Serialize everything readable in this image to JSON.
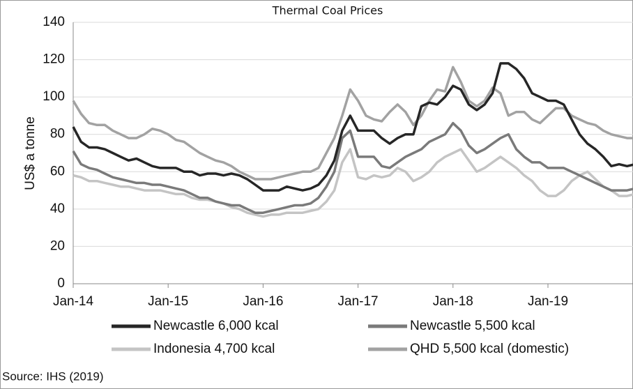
{
  "chart_data": {
    "type": "line",
    "title": "Thermal Coal Prices",
    "y_label": "US$ a tonne",
    "source": "Source: IHS (2019)",
    "categories": [
      "Jan-14",
      null,
      null,
      null,
      null,
      null,
      null,
      null,
      null,
      null,
      null,
      null,
      "Jan-15",
      null,
      null,
      null,
      null,
      null,
      null,
      null,
      null,
      null,
      null,
      null,
      "Jan-16",
      null,
      null,
      null,
      null,
      null,
      null,
      null,
      null,
      null,
      null,
      null,
      "Jan-17",
      null,
      null,
      null,
      null,
      null,
      null,
      null,
      null,
      null,
      null,
      null,
      "Jan-18",
      null,
      null,
      null,
      null,
      null,
      null,
      null,
      null,
      null,
      null,
      null,
      "Jan-19",
      null,
      null,
      null,
      null,
      null,
      null,
      null,
      null,
      null,
      null,
      null
    ],
    "ylim": [
      0,
      140
    ],
    "yticks": [
      0,
      20,
      40,
      60,
      80,
      100,
      120,
      140
    ],
    "grid": true,
    "series": [
      {
        "name": "Newcastle 6,000 kcal",
        "color": "#262626",
        "values": [
          84,
          76,
          73,
          73,
          72,
          70,
          68,
          66,
          67,
          65,
          63,
          62,
          62,
          62,
          60,
          60,
          58,
          59,
          59,
          58,
          59,
          58,
          56,
          53,
          50,
          50,
          50,
          52,
          51,
          50,
          51,
          53,
          58,
          66,
          82,
          90,
          82,
          82,
          82,
          78,
          75,
          78,
          80,
          80,
          95,
          97,
          96,
          100,
          106,
          104,
          96,
          93,
          96,
          102,
          118,
          118,
          115,
          110,
          102,
          100,
          98,
          98,
          96,
          88,
          80,
          75,
          72,
          68,
          63,
          64,
          63,
          64
        ]
      },
      {
        "name": "Newcastle 5,500 kcal",
        "color": "#7a7a7a",
        "values": [
          71,
          64,
          62,
          61,
          59,
          57,
          56,
          55,
          54,
          54,
          53,
          53,
          52,
          51,
          50,
          48,
          46,
          46,
          44,
          43,
          42,
          42,
          40,
          38,
          38,
          39,
          40,
          41,
          42,
          42,
          43,
          46,
          52,
          60,
          78,
          82,
          68,
          68,
          68,
          63,
          62,
          65,
          68,
          70,
          72,
          76,
          78,
          80,
          86,
          82,
          74,
          70,
          72,
          75,
          78,
          80,
          72,
          68,
          65,
          65,
          62,
          62,
          62,
          60,
          58,
          56,
          54,
          52,
          50,
          50,
          50,
          51
        ]
      },
      {
        "name": "Indonesia 4,700 kcal",
        "color": "#c4c4c4",
        "values": [
          58,
          57,
          55,
          55,
          54,
          53,
          52,
          52,
          51,
          50,
          50,
          50,
          49,
          48,
          48,
          46,
          45,
          45,
          44,
          43,
          41,
          40,
          38,
          37,
          36,
          37,
          37,
          38,
          38,
          38,
          39,
          40,
          44,
          50,
          65,
          72,
          57,
          56,
          58,
          57,
          58,
          62,
          60,
          55,
          57,
          60,
          65,
          68,
          70,
          72,
          66,
          60,
          62,
          65,
          68,
          65,
          62,
          58,
          55,
          50,
          47,
          47,
          50,
          55,
          58,
          60,
          56,
          52,
          50,
          47,
          47,
          48
        ]
      },
      {
        "name": "QHD 5,500 kcal (domestic)",
        "color": "#a2a2a2",
        "values": [
          98,
          91,
          86,
          85,
          85,
          82,
          80,
          78,
          78,
          80,
          83,
          82,
          80,
          77,
          76,
          73,
          70,
          68,
          66,
          65,
          63,
          60,
          58,
          56,
          56,
          56,
          57,
          58,
          59,
          60,
          60,
          62,
          70,
          78,
          90,
          104,
          98,
          90,
          88,
          87,
          92,
          96,
          92,
          85,
          90,
          98,
          104,
          103,
          116,
          108,
          98,
          95,
          98,
          105,
          102,
          90,
          92,
          92,
          88,
          86,
          90,
          94,
          94,
          90,
          88,
          86,
          85,
          82,
          80,
          79,
          78,
          78
        ]
      }
    ]
  }
}
